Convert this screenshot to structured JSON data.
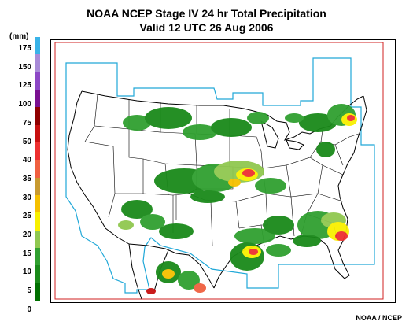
{
  "title": {
    "line1": "NOAA NCEP Stage IV 24 hr Total Precipitation",
    "line2": "Valid 12 UTC  26 Aug 2006"
  },
  "legend": {
    "unit": "(mm)",
    "levels": [
      {
        "label": "175",
        "color": "#3ab3e8"
      },
      {
        "label": "150",
        "color": "#a88bd8"
      },
      {
        "label": "125",
        "color": "#8c47c6"
      },
      {
        "label": "100",
        "color": "#7a1090"
      },
      {
        "label": "75",
        "color": "#8f0000"
      },
      {
        "label": "50",
        "color": "#c81010"
      },
      {
        "label": "40",
        "color": "#ee3030"
      },
      {
        "label": "35",
        "color": "#f06040"
      },
      {
        "label": "30",
        "color": "#c89a30"
      },
      {
        "label": "25",
        "color": "#f5c000"
      },
      {
        "label": "20",
        "color": "#f8f000"
      },
      {
        "label": "15",
        "color": "#90c850"
      },
      {
        "label": "10",
        "color": "#30a030"
      },
      {
        "label": "5",
        "color": "#1a8a1a"
      },
      {
        "label": "0",
        "color": "#007000"
      }
    ]
  },
  "credit": "NOAA / NCEP",
  "map": {
    "frame_color": "#000000",
    "domain_border_color": "#d02020",
    "coverage_border_color": "#20a8d8",
    "boundary_color": "#000000"
  }
}
